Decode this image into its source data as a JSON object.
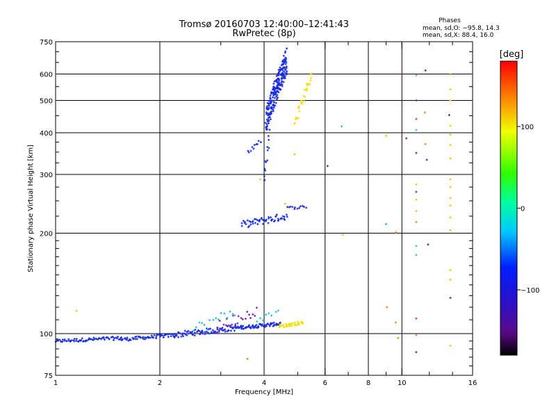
{
  "chart_data": {
    "type": "scatter",
    "title": "Tromsø 20160703 12:40:00–12:41:43",
    "subtitle": "RwPretec (8p)",
    "stats": {
      "heading": "Phases",
      "line1": "mean, sd,O: −95.8, 14.3",
      "line2": "mean, sd,X:  88.4, 16.0"
    },
    "xlabel": "Frequency [MHz]",
    "ylabel": "Stationary phase Virtual Height [km]",
    "x_scale": "log",
    "y_scale": "log",
    "xlim": [
      1,
      16
    ],
    "ylim": [
      75,
      750
    ],
    "x_ticks": [
      {
        "value": 1,
        "label": "1"
      },
      {
        "value": 2,
        "label": "2"
      },
      {
        "value": 4,
        "label": "4"
      },
      {
        "value": 6,
        "label": "6"
      },
      {
        "value": 8,
        "label": "8"
      },
      {
        "value": 10,
        "label": "10"
      },
      {
        "value": 16,
        "label": "16"
      }
    ],
    "y_ticks": [
      {
        "value": 75,
        "label": "75"
      },
      {
        "value": 100,
        "label": "100"
      },
      {
        "value": 200,
        "label": "200"
      },
      {
        "value": 300,
        "label": "300"
      },
      {
        "value": 400,
        "label": "400"
      },
      {
        "value": 500,
        "label": "500"
      },
      {
        "value": 600,
        "label": "600"
      },
      {
        "value": 750,
        "label": "750"
      }
    ],
    "grid": true,
    "colorbar": {
      "label": "[deg]",
      "range": [
        -180,
        180
      ],
      "ticks": [
        {
          "value": 100,
          "label": "100"
        },
        {
          "value": 0,
          "label": "0"
        },
        {
          "value": -100,
          "label": "−100"
        }
      ]
    },
    "series": [
      {
        "name": "",
        "color": "#1a2ee0",
        "segments": [
          {
            "f0": 1.0,
            "f1": 1.55,
            "h0": 95,
            "h1": 97,
            "n": 70,
            "jitter": 0.012
          },
          {
            "f0": 1.55,
            "f1": 2.2,
            "h0": 96,
            "h1": 99,
            "n": 60,
            "jitter": 0.012
          },
          {
            "f0": 2.2,
            "f1": 3.3,
            "h0": 99,
            "h1": 104,
            "n": 80,
            "jitter": 0.02
          },
          {
            "f0": 3.3,
            "f1": 4.45,
            "h0": 104,
            "h1": 107,
            "n": 80,
            "jitter": 0.012
          },
          {
            "f0": 3.45,
            "f1": 4.65,
            "h0": 212,
            "h1": 225,
            "n": 55,
            "jitter": 0.025
          },
          {
            "f0": 4.65,
            "f1": 5.3,
            "h0": 238,
            "h1": 240,
            "n": 12,
            "jitter": 0.01
          },
          {
            "f0": 3.6,
            "f1": 3.9,
            "h0": 350,
            "h1": 380,
            "n": 10,
            "jitter": 0.02
          },
          {
            "f0": 4.0,
            "f1": 4.15,
            "h0": 280,
            "h1": 400,
            "n": 14,
            "jitter": 0.03
          },
          {
            "f0": 4.05,
            "f1": 4.65,
            "h0": 440,
            "h1": 660,
            "n": 220,
            "jitter": 0.09
          }
        ]
      },
      {
        "name": "",
        "color": "#f0e000",
        "segments": [
          {
            "f0": 4.4,
            "f1": 5.2,
            "h0": 105,
            "h1": 108,
            "n": 35,
            "jitter": 0.012
          },
          {
            "f0": 4.9,
            "f1": 5.5,
            "h0": 430,
            "h1": 600,
            "n": 30,
            "jitter": 0.03
          }
        ]
      },
      {
        "name": "",
        "color": "#7a1fb0",
        "segments": [
          {
            "f0": 2.9,
            "f1": 3.8,
            "h0": 104,
            "h1": 118,
            "n": 22,
            "jitter": 0.04
          }
        ]
      },
      {
        "name": "",
        "color": "#1fb8e0",
        "segments": [
          {
            "f0": 2.5,
            "f1": 3.3,
            "h0": 103,
            "h1": 116,
            "n": 16,
            "jitter": 0.04
          },
          {
            "f0": 3.8,
            "f1": 4.4,
            "h0": 110,
            "h1": 116,
            "n": 8,
            "jitter": 0.02
          }
        ]
      }
    ],
    "extra_points": [
      {
        "x": 1.15,
        "y": 117,
        "color": "#f0c000"
      },
      {
        "x": 3.58,
        "y": 84,
        "color": "#ff8000"
      },
      {
        "x": 3.9,
        "y": 290,
        "color": "#f0c000"
      },
      {
        "x": 4.6,
        "y": 245,
        "color": "#f0c000"
      },
      {
        "x": 4.9,
        "y": 345,
        "color": "#f0c000"
      },
      {
        "x": 6.1,
        "y": 318,
        "color": "#1a2ee0"
      },
      {
        "x": 6.7,
        "y": 418,
        "color": "#1fb8e0"
      },
      {
        "x": 6.75,
        "y": 198,
        "color": "#f0c000"
      },
      {
        "x": 9.0,
        "y": 392,
        "color": "#f0c000"
      },
      {
        "x": 9.0,
        "y": 213,
        "color": "#1fb8e0"
      },
      {
        "x": 9.05,
        "y": 120,
        "color": "#ff8000"
      },
      {
        "x": 9.6,
        "y": 201,
        "color": "#ff8000"
      },
      {
        "x": 9.6,
        "y": 108,
        "color": "#ff8000"
      },
      {
        "x": 9.75,
        "y": 97,
        "color": "#ff8000"
      },
      {
        "x": 10.3,
        "y": 385,
        "color": "#1a2ee0"
      },
      {
        "x": 11.0,
        "y": 595,
        "color": "#1fb8e0"
      },
      {
        "x": 11.0,
        "y": 500,
        "color": "#1a2ee0"
      },
      {
        "x": 11.0,
        "y": 440,
        "color": "#ff3000"
      },
      {
        "x": 11.0,
        "y": 408,
        "color": "#1fb8e0"
      },
      {
        "x": 11.0,
        "y": 348,
        "color": "#1a2ee0"
      },
      {
        "x": 11.0,
        "y": 280,
        "color": "#f0c000"
      },
      {
        "x": 11.0,
        "y": 266,
        "color": "#7a1fb0"
      },
      {
        "x": 11.0,
        "y": 252,
        "color": "#f0c000"
      },
      {
        "x": 11.0,
        "y": 233,
        "color": "#f0c000"
      },
      {
        "x": 11.0,
        "y": 216,
        "color": "#ff8000"
      },
      {
        "x": 11.0,
        "y": 183,
        "color": "#1fb8e0"
      },
      {
        "x": 11.0,
        "y": 172,
        "color": "#1fb8e0"
      },
      {
        "x": 11.0,
        "y": 111,
        "color": "#ff3000"
      },
      {
        "x": 11.0,
        "y": 99,
        "color": "#ff8000"
      },
      {
        "x": 11.0,
        "y": 88,
        "color": "#1a2ee0"
      },
      {
        "x": 11.7,
        "y": 615,
        "color": "#1a2ee0"
      },
      {
        "x": 11.65,
        "y": 460,
        "color": "#ff8000"
      },
      {
        "x": 11.7,
        "y": 370,
        "color": "#ff8000"
      },
      {
        "x": 11.8,
        "y": 332,
        "color": "#1a2ee0"
      },
      {
        "x": 11.9,
        "y": 185,
        "color": "#1a2ee0"
      },
      {
        "x": 13.8,
        "y": 598,
        "color": "#f0c000"
      },
      {
        "x": 13.8,
        "y": 540,
        "color": "#f0c000"
      },
      {
        "x": 13.8,
        "y": 500,
        "color": "#f0c000"
      },
      {
        "x": 13.7,
        "y": 452,
        "color": "#1a2ee0"
      },
      {
        "x": 13.8,
        "y": 420,
        "color": "#f0c000"
      },
      {
        "x": 13.8,
        "y": 395,
        "color": "#f0c000"
      },
      {
        "x": 13.8,
        "y": 368,
        "color": "#f0c000"
      },
      {
        "x": 13.8,
        "y": 335,
        "color": "#f0c000"
      },
      {
        "x": 13.8,
        "y": 290,
        "color": "#f0c000"
      },
      {
        "x": 13.8,
        "y": 275,
        "color": "#f0c000"
      },
      {
        "x": 13.8,
        "y": 255,
        "color": "#f0c000"
      },
      {
        "x": 13.8,
        "y": 242,
        "color": "#f0c000"
      },
      {
        "x": 13.8,
        "y": 223,
        "color": "#f0c000"
      },
      {
        "x": 13.8,
        "y": 204,
        "color": "#f0c000"
      },
      {
        "x": 13.8,
        "y": 155,
        "color": "#f0c000"
      },
      {
        "x": 13.8,
        "y": 145,
        "color": "#f0c000"
      },
      {
        "x": 13.8,
        "y": 128,
        "color": "#1a2ee0"
      },
      {
        "x": 13.8,
        "y": 92,
        "color": "#f0c000"
      }
    ]
  }
}
